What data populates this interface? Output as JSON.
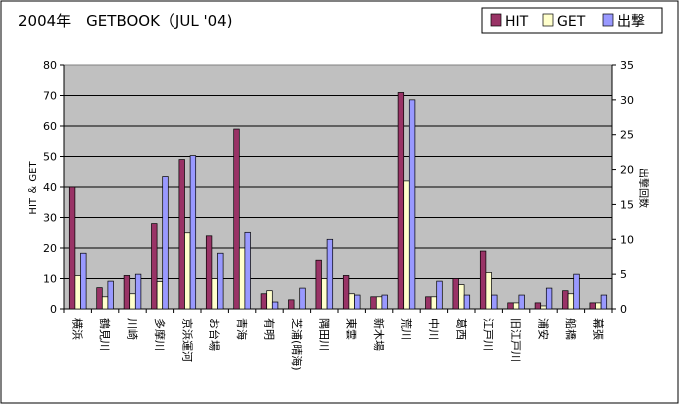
{
  "chart_data": {
    "type": "bar",
    "title": "2004年　GETBOOK（JUL '04)",
    "ylabel_left": "HIT ＆ GET",
    "ylabel_right": "出撃回数",
    "ylim_left": [
      0,
      80
    ],
    "ylim_right": [
      0,
      35
    ],
    "yticks_left": [
      "0",
      "10",
      "20",
      "30",
      "40",
      "50",
      "60",
      "70",
      "80"
    ],
    "yticks_right": [
      "0",
      "5",
      "10",
      "15",
      "20",
      "25",
      "30",
      "35"
    ],
    "grid": true,
    "legend_position": "top-right",
    "categories": [
      "横浜",
      "鶴見川",
      "川崎",
      "多摩川",
      "京浜運河",
      "お台場",
      "青海",
      "有明",
      "芝浦(晴海)",
      "隅田川",
      "東雲",
      "新木場",
      "荒川",
      "中川",
      "葛西",
      "江戸川",
      "旧江戸川",
      "浦安",
      "船橋",
      "幕張"
    ],
    "series": [
      {
        "name": "HIT",
        "axis": "left",
        "color": "#993366",
        "values": [
          40,
          7,
          11,
          28,
          49,
          24,
          59,
          5,
          3,
          16,
          11,
          4,
          71,
          4,
          10,
          19,
          2,
          2,
          6,
          2
        ]
      },
      {
        "name": "GET",
        "axis": "left",
        "color": "#ffffcc",
        "values": [
          11,
          4,
          5,
          9,
          25,
          10,
          20,
          6,
          0,
          10,
          5,
          4,
          42,
          4,
          8,
          12,
          2,
          1,
          5,
          2
        ]
      },
      {
        "name": "出撃",
        "axis": "right",
        "color": "#9999ff",
        "values": [
          8,
          4,
          5,
          19,
          22,
          8,
          11,
          1,
          3,
          10,
          2,
          2,
          30,
          4,
          2,
          2,
          2,
          3,
          5,
          2
        ]
      }
    ]
  }
}
